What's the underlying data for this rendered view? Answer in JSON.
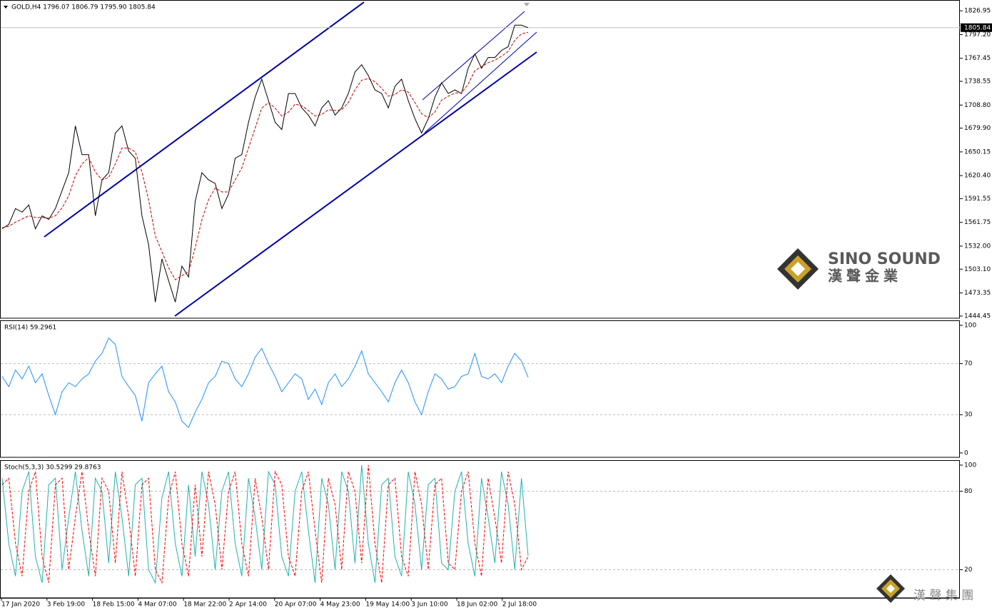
{
  "chart_data": [
    {
      "type": "line",
      "title": "GOLD,H4 1796.07 1806.79 1795.90 1805.84",
      "ylim": [
        1441.7,
        1840.5
      ],
      "yticks": [
        1826.95,
        {
          "value": 1797.2,
          "label": "1797.20"
        },
        1767.45,
        1738.55,
        {
          "value": 1708.8,
          "label": "1708.80"
        },
        {
          "value": 1679.9,
          "label": "1679.90"
        },
        1650.15,
        {
          "value": 1620.4,
          "label": "1620.40"
        },
        1591.55,
        1561.75,
        {
          "value": 1532,
          "label": "1532.00"
        },
        {
          "value": 1503.1,
          "label": "1503.10"
        },
        1473.35,
        1444.45
      ],
      "last_price": {
        "value": 1805.84,
        "label": "1805.84"
      },
      "series": [
        {
          "color": "#000000",
          "values": [
            1553.8,
            1559.2,
            1579.1,
            1574.6,
            1583.6,
            1553.8,
            1570.0,
            1565.5,
            1579.1,
            1601.6,
            1624.1,
            1682.7,
            1646.7,
            1646.7,
            1570.0,
            1615.1,
            1624.1,
            1673.7,
            1682.7,
            1651.2,
            1642.2,
            1570.0,
            1534.0,
            1461.9,
            1516.0,
            1488.9,
            1461.9,
            1507.0,
            1493.4,
            1588.1,
            1624.1,
            1615.1,
            1610.6,
            1579.1,
            1597.1,
            1642.2,
            1646.7,
            1687.2,
            1718.8,
            1741.3,
            1714.3,
            1687.2,
            1678.2,
            1723.3,
            1723.3,
            1705.3,
            1696.3,
            1682.7,
            1705.3,
            1714.3,
            1696.3,
            1705.3,
            1723.3,
            1750.3,
            1759.4,
            1745.8,
            1727.8,
            1723.3,
            1705.3,
            1732.3,
            1741.3,
            1714.3,
            1691.8,
            1673.7,
            1691.8,
            1718.8,
            1736.8,
            1723.3,
            1727.8,
            1723.3,
            1754.9,
            1772.9,
            1754.9,
            1768.4,
            1768.4,
            1777.4,
            1781.9,
            1808.9,
            1808.9,
            1805.8
          ]
        },
        {
          "color": "#cc0000",
          "style": "dashed",
          "values": [
            1555,
            1557,
            1562,
            1566,
            1570,
            1568,
            1568,
            1567,
            1570,
            1580,
            1595,
            1620,
            1635,
            1643,
            1625,
            1615,
            1618,
            1635,
            1655,
            1655,
            1650,
            1625,
            1590,
            1545,
            1525,
            1505,
            1490,
            1495,
            1500,
            1530,
            1565,
            1590,
            1605,
            1600,
            1600,
            1615,
            1630,
            1655,
            1680,
            1705,
            1712,
            1705,
            1695,
            1700,
            1710,
            1708,
            1702,
            1695,
            1697,
            1703,
            1702,
            1703,
            1712,
            1728,
            1740,
            1742,
            1738,
            1730,
            1720,
            1722,
            1728,
            1725,
            1712,
            1698,
            1693,
            1700,
            1715,
            1720,
            1724,
            1724,
            1735,
            1752,
            1757,
            1762,
            1765,
            1770,
            1776,
            1790,
            1798,
            1800
          ]
        }
      ]
    },
    {
      "type": "line",
      "title": "RSI(14) 59.2961",
      "ylim": [
        -3.4,
        103.9
      ],
      "yticks": [
        0,
        30,
        70,
        100
      ],
      "levels": [
        30,
        70
      ],
      "series": [
        {
          "color": "#1e90ff",
          "values": [
            60,
            52,
            65,
            58,
            68,
            55,
            62,
            45,
            30,
            48,
            55,
            52,
            58,
            62,
            72,
            78,
            90,
            85,
            60,
            52,
            45,
            25,
            55,
            62,
            68,
            48,
            40,
            25,
            20,
            32,
            42,
            55,
            60,
            72,
            70,
            58,
            52,
            62,
            75,
            82,
            70,
            60,
            48,
            55,
            62,
            58,
            42,
            50,
            38,
            55,
            62,
            52,
            58,
            68,
            80,
            62,
            55,
            48,
            40,
            55,
            65,
            55,
            40,
            30,
            48,
            62,
            58,
            50,
            52,
            60,
            62,
            78,
            60,
            58,
            62,
            55,
            68,
            78,
            72,
            59.3
          ]
        }
      ]
    },
    {
      "type": "line",
      "title": "Stoch(5,3,3) 30.5299 29.8763",
      "ylim": [
        -1.6,
        103.8
      ],
      "yticks": [
        20,
        80,
        100
      ],
      "levels": [
        20,
        80
      ],
      "series": [
        {
          "color": "#20b2aa",
          "values": [
            90,
            40,
            15,
            80,
            95,
            30,
            10,
            85,
            90,
            20,
            60,
            95,
            50,
            15,
            90,
            80,
            25,
            95,
            60,
            15,
            85,
            90,
            20,
            10,
            75,
            95,
            40,
            15,
            85,
            30,
            95,
            70,
            20,
            80,
            95,
            40,
            15,
            90,
            60,
            20,
            95,
            85,
            30,
            15,
            80,
            95,
            50,
            10,
            90,
            70,
            20,
            95,
            80,
            25,
            100,
            40,
            10,
            85,
            90,
            30,
            15,
            95,
            70,
            20,
            85,
            90,
            25,
            20,
            80,
            95,
            40,
            15,
            90,
            60,
            25,
            95,
            70,
            20,
            90,
            30.5
          ]
        },
        {
          "color": "#ff0000",
          "style": "dashed",
          "values": [
            85,
            90,
            40,
            15,
            80,
            95,
            30,
            10,
            85,
            90,
            20,
            60,
            95,
            50,
            15,
            90,
            80,
            25,
            95,
            60,
            15,
            85,
            90,
            20,
            10,
            75,
            95,
            40,
            15,
            85,
            30,
            95,
            70,
            20,
            80,
            95,
            40,
            15,
            90,
            60,
            20,
            95,
            85,
            30,
            15,
            80,
            95,
            50,
            10,
            90,
            70,
            20,
            95,
            80,
            25,
            100,
            40,
            10,
            85,
            90,
            30,
            15,
            95,
            70,
            20,
            85,
            90,
            25,
            20,
            80,
            95,
            40,
            15,
            90,
            60,
            25,
            95,
            70,
            20,
            29.9
          ]
        }
      ]
    }
  ],
  "time_axis": {
    "labels": [
      "17 Jan 2020",
      "3 Feb 19:00",
      "18 Feb 15:00",
      "4 Mar 07:00",
      "18 Mar 22:00",
      "2 Apr 14:00",
      "20 Apr 07:00",
      "4 May 23:00",
      "19 May 14:00",
      "3 Jun 10:00",
      "18 Jun 02:00",
      "2 Jul 18:00"
    ]
  },
  "logo": {
    "name": "SINO SOUND",
    "chinese": "漢聲金業"
  },
  "watermark": "漢 聲 集 團"
}
